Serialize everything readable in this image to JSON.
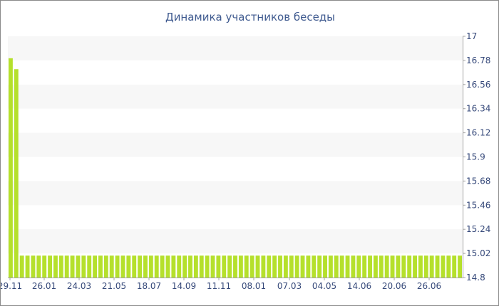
{
  "chart_data": {
    "type": "bar",
    "title": "Динамика участников беседы",
    "xlabel": "",
    "ylabel": "",
    "ylim": [
      14.8,
      17
    ],
    "y_ticks": [
      "14.8",
      "15.02",
      "15.24",
      "15.46",
      "15.68",
      "15.9",
      "16.12",
      "16.34",
      "16.56",
      "16.78",
      "17"
    ],
    "x_tick_labels": [
      "29.11",
      "26.01",
      "24.03",
      "21.05",
      "18.07",
      "14.09",
      "11.11",
      "08.01",
      "07.03",
      "04.05",
      "14.06",
      "20.06",
      "26.06"
    ],
    "values": [
      16.8,
      16.7,
      15,
      15,
      15,
      15,
      15,
      15,
      15,
      15,
      15,
      15,
      15,
      15,
      15,
      15,
      15,
      15,
      15,
      15,
      15,
      15,
      15,
      15,
      15,
      15,
      15,
      15,
      15,
      15,
      15,
      15,
      15,
      15,
      15,
      15,
      15,
      15,
      15,
      15,
      15,
      15,
      15,
      15,
      15,
      15,
      15,
      15,
      15,
      15,
      15,
      15,
      15,
      15,
      15,
      15,
      15,
      15,
      15,
      15,
      15,
      15,
      15,
      15,
      15,
      15,
      15,
      15,
      15,
      15,
      15,
      15,
      15,
      15,
      15,
      15,
      15,
      15,
      15,
      15,
      15
    ],
    "grid": true,
    "y_axis_side": "right",
    "colors": {
      "bar": "#b5e02c",
      "band": "#f7f7f7",
      "title": "#3f5a8f",
      "tick": "#36497a",
      "axis": "#a3a3a3"
    }
  }
}
